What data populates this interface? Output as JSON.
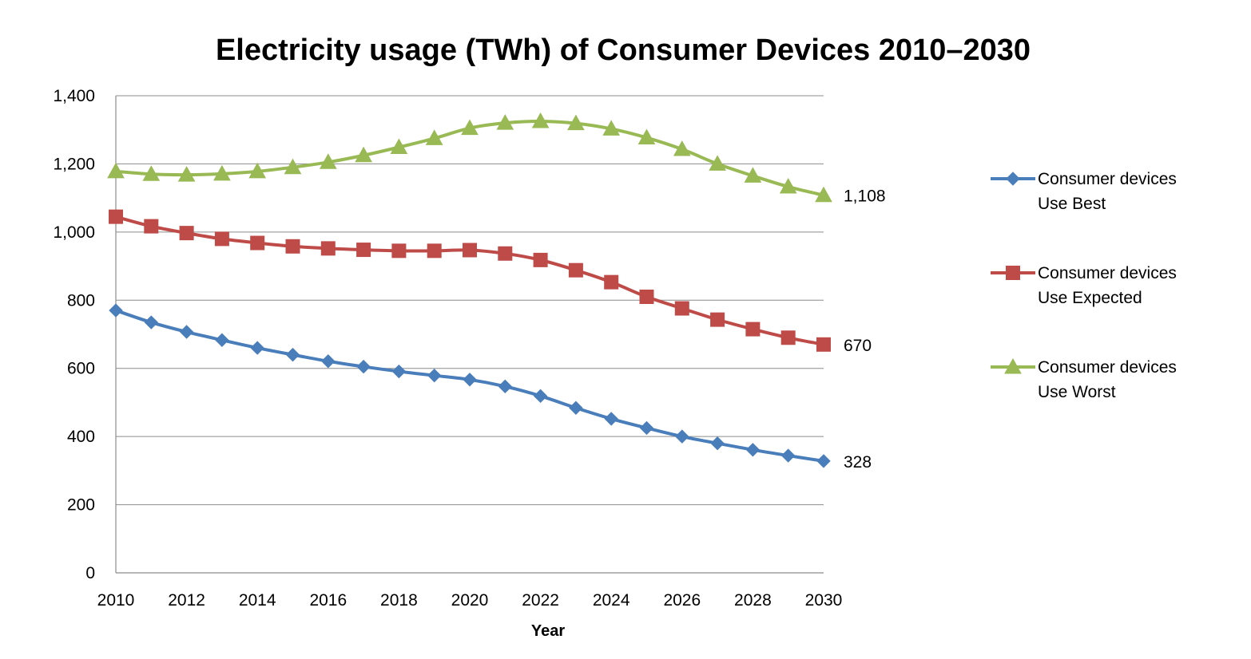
{
  "chart_data": {
    "type": "line",
    "title": "Electricity usage (TWh) of Consumer Devices 2010–2030",
    "xlabel": "Year",
    "ylabel": "",
    "x": [
      2010,
      2011,
      2012,
      2013,
      2014,
      2015,
      2016,
      2017,
      2018,
      2019,
      2020,
      2021,
      2022,
      2023,
      2024,
      2025,
      2026,
      2027,
      2028,
      2029,
      2030
    ],
    "xlim": [
      2010,
      2030
    ],
    "ylim": [
      0,
      1400
    ],
    "x_ticks": [
      "2010",
      "2012",
      "2014",
      "2016",
      "2018",
      "2020",
      "2022",
      "2024",
      "2026",
      "2028",
      "2030"
    ],
    "y_ticks": [
      "0",
      "200",
      "400",
      "600",
      "800",
      "1,000",
      "1,200",
      "1,400"
    ],
    "grid": true,
    "legend_position": "right",
    "series": [
      {
        "name": "Consumer devices Use Best",
        "legend_lines": [
          "Consumer devices",
          "Use Best"
        ],
        "color": "#4a7ebb",
        "marker": "diamond",
        "values": [
          770,
          735,
          707,
          683,
          660,
          640,
          621,
          605,
          591,
          579,
          567,
          547,
          519,
          484,
          452,
          425,
          400,
          380,
          361,
          344,
          328
        ],
        "end_label": "328"
      },
      {
        "name": "Consumer devices Use Expected",
        "legend_lines": [
          "Consumer devices",
          "Use Expected"
        ],
        "color": "#be4b48",
        "marker": "square",
        "values": [
          1045,
          1017,
          997,
          980,
          968,
          958,
          952,
          948,
          945,
          945,
          947,
          937,
          918,
          888,
          853,
          810,
          776,
          743,
          715,
          690,
          670
        ],
        "end_label": "670"
      },
      {
        "name": "Consumer devices Use Worst",
        "legend_lines": [
          "Consumer devices",
          "Use Worst"
        ],
        "color": "#98b954",
        "marker": "triangle",
        "values": [
          1178,
          1170,
          1168,
          1171,
          1178,
          1190,
          1205,
          1225,
          1249,
          1275,
          1305,
          1320,
          1325,
          1319,
          1303,
          1277,
          1243,
          1200,
          1165,
          1133,
          1108
        ],
        "end_label": "1,108"
      }
    ]
  }
}
